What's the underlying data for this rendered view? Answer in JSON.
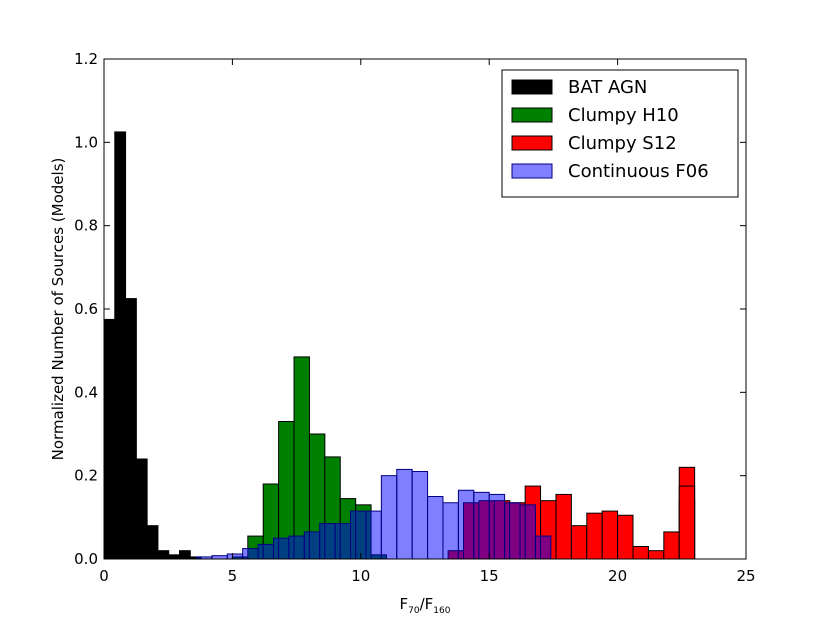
{
  "chart_data": {
    "type": "bar",
    "xlabel": "F70/F160",
    "xlabel_main": "F",
    "xlabel_sub1": "70",
    "xlabel_sep": "/F",
    "xlabel_sub2": "160",
    "ylabel": "Normalized Number of Sources (Models)",
    "xlim": [
      0,
      25
    ],
    "ylim": [
      0,
      1.2
    ],
    "xticks": [
      "0",
      "5",
      "10",
      "15",
      "20",
      "25"
    ],
    "yticks": [
      "0.0",
      "0.2",
      "0.4",
      "0.6",
      "0.8",
      "1.0",
      "1.2"
    ],
    "legend_position": "top-right",
    "series": [
      {
        "name": "BAT AGN",
        "color": "#000000",
        "edge": "#000000",
        "opacity": 1,
        "bin_width": 0.42,
        "bins": [
          [
            0.0,
            0.575
          ],
          [
            0.42,
            1.025
          ],
          [
            0.84,
            0.625
          ],
          [
            1.26,
            0.24
          ],
          [
            1.68,
            0.08
          ],
          [
            2.1,
            0.02
          ],
          [
            2.52,
            0.01
          ],
          [
            2.94,
            0.02
          ],
          [
            3.36,
            0.005
          ]
        ]
      },
      {
        "name": "Clumpy H10",
        "color": "#008000",
        "edge": "#000000",
        "opacity": 1,
        "bin_width": 0.6,
        "bins": [
          [
            5.0,
            0.005
          ],
          [
            5.6,
            0.055
          ],
          [
            6.2,
            0.18
          ],
          [
            6.8,
            0.33
          ],
          [
            7.4,
            0.485
          ],
          [
            8.0,
            0.3
          ],
          [
            8.6,
            0.245
          ],
          [
            9.2,
            0.145
          ],
          [
            9.8,
            0.13
          ],
          [
            10.4,
            0.01
          ]
        ]
      },
      {
        "name": "Clumpy S12",
        "color": "#ff0000",
        "edge": "#000000",
        "opacity": 1,
        "bin_width": 0.6,
        "bins": [
          [
            13.4,
            0.02
          ],
          [
            14.0,
            0.135
          ],
          [
            14.6,
            0.14
          ],
          [
            15.2,
            0.14
          ],
          [
            15.8,
            0.135
          ],
          [
            16.4,
            0.175
          ],
          [
            17.0,
            0.14
          ],
          [
            17.6,
            0.155
          ],
          [
            18.2,
            0.08
          ],
          [
            18.8,
            0.11
          ],
          [
            19.4,
            0.115
          ],
          [
            20.0,
            0.105
          ],
          [
            20.6,
            0.03
          ],
          [
            21.2,
            0.02
          ],
          [
            21.8,
            0.065
          ],
          [
            22.4,
            0.22
          ],
          [
            22.4,
            0.14
          ],
          [
            22.4,
            0.175
          ]
        ]
      },
      {
        "name": "Continuous F06",
        "color": "#0000ff",
        "edge": "#000080",
        "opacity": 0.5,
        "bin_width": 0.6,
        "bins": [
          [
            3.6,
            0.005
          ],
          [
            4.2,
            0.008
          ],
          [
            4.8,
            0.012
          ],
          [
            5.4,
            0.025
          ],
          [
            6.0,
            0.035
          ],
          [
            6.6,
            0.05
          ],
          [
            7.2,
            0.055
          ],
          [
            7.8,
            0.065
          ],
          [
            8.4,
            0.085
          ],
          [
            9.0,
            0.085
          ],
          [
            9.6,
            0.115
          ],
          [
            10.2,
            0.115
          ],
          [
            10.8,
            0.2
          ],
          [
            11.4,
            0.215
          ],
          [
            12.0,
            0.21
          ],
          [
            12.6,
            0.15
          ],
          [
            13.2,
            0.135
          ],
          [
            13.8,
            0.165
          ],
          [
            14.4,
            0.16
          ],
          [
            15.0,
            0.155
          ],
          [
            15.6,
            0.135
          ],
          [
            16.2,
            0.13
          ],
          [
            16.8,
            0.055
          ]
        ]
      }
    ]
  }
}
